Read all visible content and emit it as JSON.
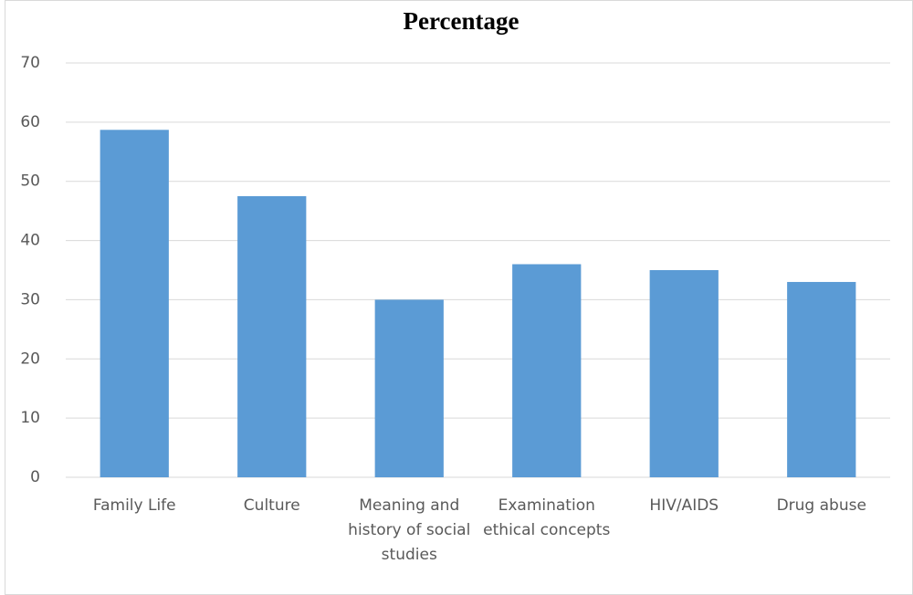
{
  "chart_data": {
    "type": "bar",
    "title": "Percentage",
    "categories": [
      "Family Life",
      "Culture",
      "Meaning and history of social studies",
      "Examination ethical concepts",
      "HIV/AIDS",
      "Drug abuse"
    ],
    "values": [
      58.7,
      47.5,
      30,
      36,
      35,
      33
    ],
    "color": "#5b9bd5",
    "ylim": [
      0,
      70
    ],
    "yticks": [
      0,
      10,
      20,
      30,
      40,
      50,
      60,
      70
    ],
    "grid": true
  }
}
